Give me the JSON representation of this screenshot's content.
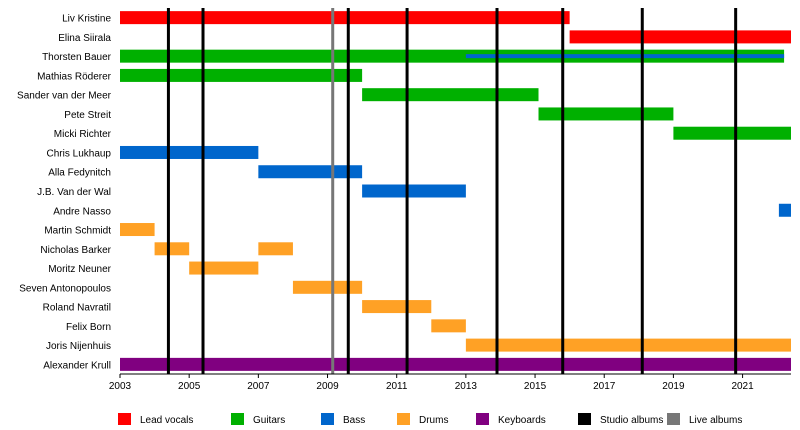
{
  "chart_data": {
    "type": "timeline",
    "x_axis": {
      "range": [
        2003,
        2022.4
      ],
      "ticks": [
        "2003",
        "2005",
        "2007",
        "2009",
        "2011",
        "2013",
        "2015",
        "2017",
        "2019",
        "2021"
      ]
    },
    "grid": false,
    "legend_placement": "bottom",
    "roles": {
      "lead_vocals": {
        "label": "Lead vocals",
        "color": "#ff0000"
      },
      "guitars": {
        "label": "Guitars",
        "color": "#00b000"
      },
      "bass": {
        "label": "Bass",
        "color": "#0066cc"
      },
      "drums": {
        "label": "Drums",
        "color": "#ffa125"
      },
      "keyboards": {
        "label": "Keyboards",
        "color": "#800080"
      },
      "studio_albums": {
        "label": "Studio albums",
        "color": "#000000"
      },
      "live_albums": {
        "label": "Live albums",
        "color": "#777777"
      }
    },
    "legend_order": [
      "lead_vocals",
      "guitars",
      "bass",
      "drums",
      "keyboards",
      "studio_albums",
      "live_albums"
    ],
    "members": [
      {
        "name": "Liv Kristine",
        "periods": [
          {
            "role": "lead_vocals",
            "start": 2003,
            "end": 2016
          }
        ]
      },
      {
        "name": "Elina Siirala",
        "periods": [
          {
            "role": "lead_vocals",
            "start": 2016,
            "end": 2022.4
          }
        ]
      },
      {
        "name": "Thorsten Bauer",
        "periods": [
          {
            "role": "guitars",
            "start": 2003,
            "end": 2022.2
          },
          {
            "role": "bass",
            "start": 2013,
            "end": 2022.2,
            "secondary": true
          }
        ]
      },
      {
        "name": "Mathias Röderer",
        "periods": [
          {
            "role": "guitars",
            "start": 2003,
            "end": 2010
          }
        ]
      },
      {
        "name": "Sander van der Meer",
        "periods": [
          {
            "role": "guitars",
            "start": 2010,
            "end": 2015.1
          }
        ]
      },
      {
        "name": "Pete Streit",
        "periods": [
          {
            "role": "guitars",
            "start": 2015.1,
            "end": 2019
          }
        ]
      },
      {
        "name": "Micki Richter",
        "periods": [
          {
            "role": "guitars",
            "start": 2019,
            "end": 2022.4
          }
        ]
      },
      {
        "name": "Chris Lukhaup",
        "periods": [
          {
            "role": "bass",
            "start": 2003,
            "end": 2007
          }
        ]
      },
      {
        "name": "Alla Fedynitch",
        "periods": [
          {
            "role": "bass",
            "start": 2007,
            "end": 2010
          }
        ]
      },
      {
        "name": "J.B. Van der Wal",
        "periods": [
          {
            "role": "bass",
            "start": 2010,
            "end": 2013
          }
        ]
      },
      {
        "name": "Andre Nasso",
        "periods": [
          {
            "role": "bass",
            "start": 2022.05,
            "end": 2022.4
          }
        ]
      },
      {
        "name": "Martin Schmidt",
        "periods": [
          {
            "role": "drums",
            "start": 2003,
            "end": 2004
          }
        ]
      },
      {
        "name": "Nicholas Barker",
        "periods": [
          {
            "role": "drums",
            "start": 2004,
            "end": 2005
          },
          {
            "role": "drums",
            "start": 2007,
            "end": 2008
          }
        ]
      },
      {
        "name": "Moritz Neuner",
        "periods": [
          {
            "role": "drums",
            "start": 2005,
            "end": 2007
          }
        ]
      },
      {
        "name": "Seven Antonopoulos",
        "periods": [
          {
            "role": "drums",
            "start": 2008,
            "end": 2010
          }
        ]
      },
      {
        "name": "Roland Navratil",
        "periods": [
          {
            "role": "drums",
            "start": 2010,
            "end": 2012
          }
        ]
      },
      {
        "name": "Felix Born",
        "periods": [
          {
            "role": "drums",
            "start": 2012,
            "end": 2013
          }
        ]
      },
      {
        "name": "Joris Nijenhuis",
        "periods": [
          {
            "role": "drums",
            "start": 2013,
            "end": 2022.4
          }
        ]
      },
      {
        "name": "Alexander Krull",
        "periods": [
          {
            "role": "keyboards",
            "start": 2003,
            "end": 2022.4
          }
        ]
      }
    ],
    "studio_album_years": [
      2004.4,
      2005.4,
      2009.6,
      2011.3,
      2013.9,
      2015.8,
      2018.1,
      2020.8
    ],
    "live_album_years": [
      2009.15
    ]
  }
}
